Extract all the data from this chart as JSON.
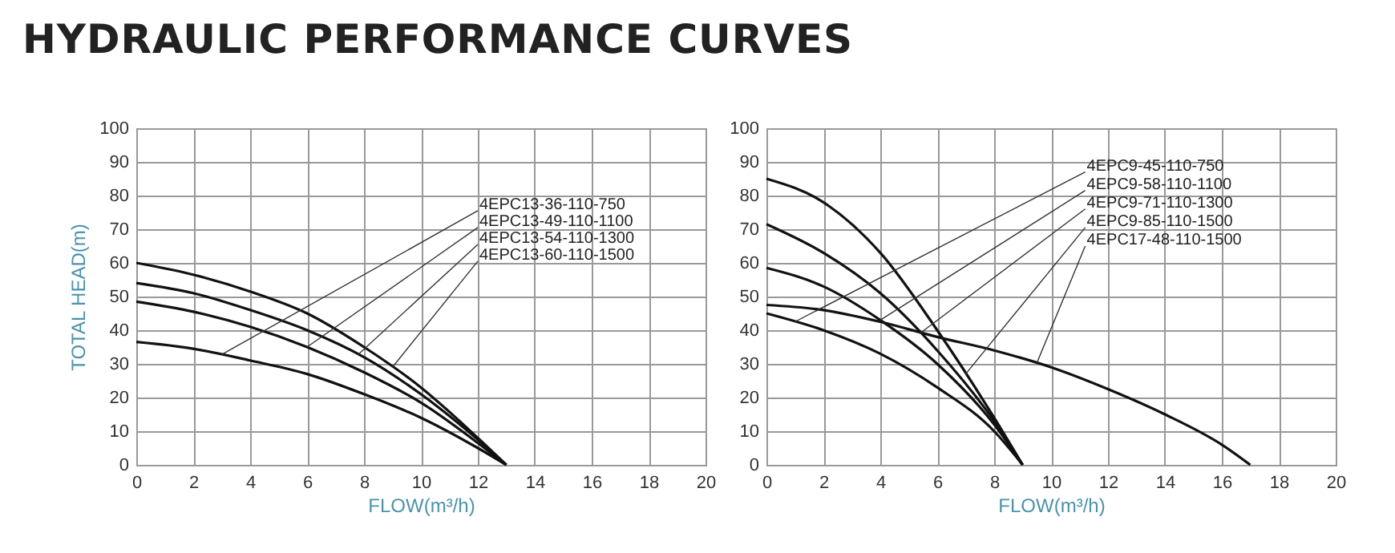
{
  "chart_data": [
    {
      "type": "line",
      "title": "HYDRAULIC PERFORMANCE CURVES",
      "xlabel": "FLOW(m³/h)",
      "ylabel": "TOTAL HEAD(m)",
      "xlim": [
        0,
        20
      ],
      "ylim": [
        0,
        100
      ],
      "xticks": [
        0,
        2,
        4,
        6,
        8,
        10,
        12,
        14,
        16,
        18,
        20
      ],
      "yticks": [
        0,
        10,
        20,
        30,
        40,
        50,
        60,
        70,
        80,
        90,
        100
      ],
      "grid": true,
      "legend": false,
      "marker": "none",
      "series": [
        {
          "name": "4EPC13-36-110-750",
          "color": "#111111",
          "x": [
            0,
            2,
            4,
            6,
            8,
            10,
            12,
            13
          ],
          "values": [
            36.5,
            34.5,
            31,
            27,
            21,
            14,
            5,
            0
          ]
        },
        {
          "name": "4EPC13-49-110-1100",
          "color": "#111111",
          "x": [
            0,
            2,
            4,
            6,
            8,
            10,
            12,
            13
          ],
          "values": [
            48.5,
            45.5,
            41,
            35,
            27.5,
            18.5,
            6.5,
            0
          ]
        },
        {
          "name": "4EPC13-54-110-1300",
          "color": "#111111",
          "x": [
            0,
            2,
            4,
            6,
            8,
            10,
            12,
            13
          ],
          "values": [
            54,
            51,
            46,
            40,
            32,
            21,
            7.5,
            0
          ]
        },
        {
          "name": "4EPC13-60-110-1500",
          "color": "#111111",
          "x": [
            0,
            2,
            4,
            6,
            8,
            10,
            12,
            13
          ],
          "values": [
            60,
            56.5,
            51.5,
            45,
            35,
            23,
            8,
            0
          ]
        }
      ]
    },
    {
      "type": "line",
      "xlabel": "FLOW(m³/h)",
      "xlim": [
        0,
        20
      ],
      "ylim": [
        0,
        100
      ],
      "xticks": [
        0,
        2,
        4,
        6,
        8,
        10,
        12,
        14,
        16,
        18,
        20
      ],
      "yticks": [
        0,
        10,
        20,
        30,
        40,
        50,
        60,
        70,
        80,
        90,
        100
      ],
      "grid": true,
      "legend": false,
      "marker": "none",
      "series": [
        {
          "name": "4EPC9-45-110-750",
          "color": "#111111",
          "x": [
            0,
            2,
            4,
            6,
            8,
            9
          ],
          "values": [
            45,
            40,
            33,
            23,
            10,
            0
          ]
        },
        {
          "name": "4EPC9-58-110-1100",
          "color": "#111111",
          "x": [
            0,
            2,
            4,
            6,
            8,
            9
          ],
          "values": [
            58.5,
            53,
            43,
            30,
            12,
            0
          ]
        },
        {
          "name": "4EPC9-71-110-1300",
          "color": "#111111",
          "x": [
            0,
            2,
            4,
            6,
            8,
            9
          ],
          "values": [
            71.5,
            63,
            51,
            34,
            13,
            0
          ]
        },
        {
          "name": "4EPC9-85-110-1500",
          "color": "#111111",
          "x": [
            0,
            2,
            4,
            6,
            8,
            9
          ],
          "values": [
            85,
            78,
            63,
            40,
            14,
            0
          ]
        },
        {
          "name": "4EPC17-48-110-1500",
          "color": "#111111",
          "x": [
            0,
            2,
            4,
            6,
            8,
            10,
            12,
            14,
            16,
            17
          ],
          "values": [
            47.5,
            46,
            42.5,
            38,
            34,
            29,
            22.5,
            15,
            6,
            0
          ]
        }
      ]
    }
  ]
}
